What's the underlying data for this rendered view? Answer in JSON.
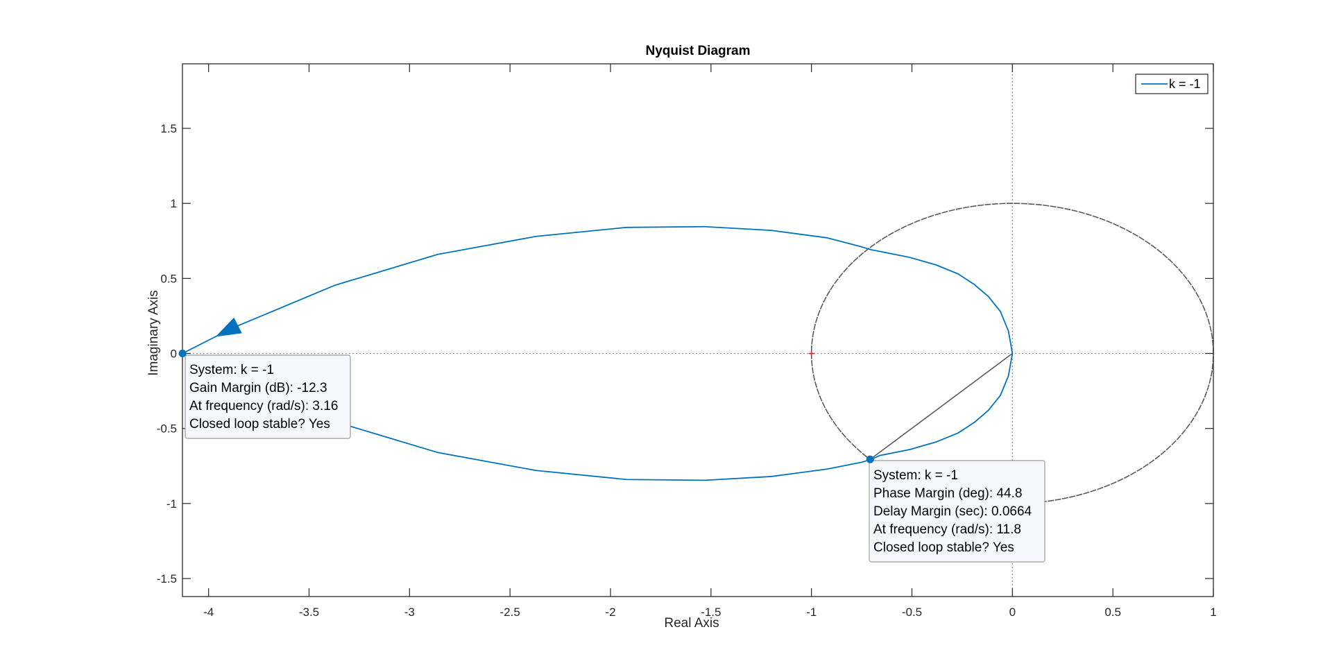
{
  "chart_data": {
    "type": "line",
    "title": "Nyquist Diagram",
    "xlabel": "Real Axis",
    "ylabel": "Imaginary Axis",
    "xlim": [
      -4.13,
      1.0
    ],
    "ylim": [
      -1.62,
      1.93
    ],
    "xticks": [
      -4,
      -3.5,
      -3,
      -2.5,
      -2,
      -1.5,
      -1,
      -0.5,
      0,
      0.5,
      1
    ],
    "xtick_labels": [
      "-4",
      "-3.5",
      "-3",
      "-2.5",
      "-2",
      "-1.5",
      "-1",
      "-0.5",
      "0",
      "0.5",
      "1"
    ],
    "yticks": [
      -1.5,
      -1,
      -0.5,
      0,
      0.5,
      1,
      1.5
    ],
    "ytick_labels": [
      "-1.5",
      "-1",
      "-0.5",
      "0",
      "0.5",
      "1",
      "1.5"
    ],
    "grid": false,
    "legend": {
      "position": "top-right",
      "entries": [
        "k = -1"
      ]
    },
    "series": [
      {
        "name": "k = -1",
        "color": "#0072BD",
        "x": [
          0,
          -0.02,
          -0.06,
          -0.12,
          -0.19,
          -0.27,
          -0.38,
          -0.51,
          -0.66,
          -0.7,
          -0.75,
          -0.92,
          -1.2,
          -1.53,
          -1.92,
          -2.37,
          -2.86,
          -3.37,
          -3.88,
          -4.13,
          -3.88,
          -3.37,
          -2.86,
          -2.37,
          -1.92,
          -1.53,
          -1.2,
          -0.92,
          -0.75,
          -0.7,
          -0.66,
          -0.51,
          -0.38,
          -0.27,
          -0.19,
          -0.12,
          -0.06,
          -0.02,
          0
        ],
        "y": [
          0,
          0.15,
          0.28,
          0.38,
          0.46,
          0.53,
          0.59,
          0.64,
          0.68,
          0.69,
          0.71,
          0.77,
          0.82,
          0.845,
          0.84,
          0.78,
          0.66,
          0.455,
          0.17,
          0,
          -0.17,
          -0.455,
          -0.66,
          -0.78,
          -0.84,
          -0.845,
          -0.82,
          -0.77,
          -0.725,
          -0.705,
          -0.68,
          -0.64,
          -0.59,
          -0.53,
          -0.46,
          -0.38,
          -0.28,
          -0.15,
          0
        ]
      }
    ],
    "reference": {
      "unit_circle_color": "#595959",
      "critical_point": {
        "x": -1,
        "y": 0,
        "color": "#D62728"
      }
    },
    "annotations": [
      {
        "name": "gain-margin-datatip",
        "marker": {
          "x": -4.13,
          "y": 0
        },
        "lines": [
          "System: k = -1",
          "Gain Margin (dB): -12.3",
          "At frequency (rad/s): 3.16",
          "Closed loop stable? Yes"
        ]
      },
      {
        "name": "phase-margin-datatip",
        "marker": {
          "x": -0.708,
          "y": -0.706
        },
        "lines": [
          "System: k = -1",
          "Phase Margin (deg): 44.8",
          "Delay Margin (sec): 0.0664",
          "At frequency (rad/s): 11.8",
          "Closed loop stable? Yes"
        ]
      }
    ]
  }
}
